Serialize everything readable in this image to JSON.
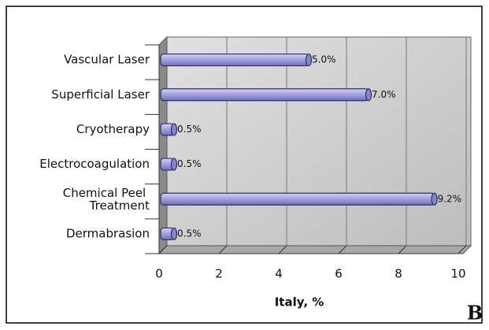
{
  "chart_data": {
    "type": "bar",
    "orientation": "horizontal",
    "categories": [
      "Vascular Laser",
      "Superficial Laser",
      "Cryotherapy",
      "Electrocoagulation",
      "Chemical Peel Treatment",
      "Dermabrasion"
    ],
    "values": [
      5.0,
      7.0,
      0.5,
      0.5,
      9.2,
      0.5
    ],
    "value_labels": [
      "5.0%",
      "7.0%",
      "0.5%",
      "0.5%",
      "9.2%",
      "0.5%"
    ],
    "color": "#9c9ce0",
    "xlim": [
      0,
      10
    ],
    "xticks": [
      0,
      2,
      4,
      6,
      8,
      10
    ],
    "xlabel": "Italy, %",
    "annotation": "B",
    "grid": true
  }
}
